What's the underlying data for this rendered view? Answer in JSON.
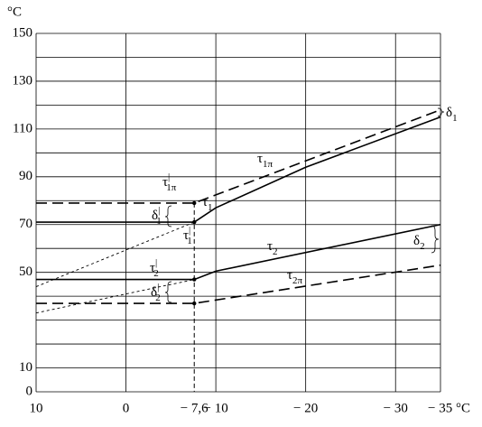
{
  "chart_data": {
    "type": "line",
    "y_unit": "°C",
    "xlim": [
      10,
      -35
    ],
    "ylim": [
      0,
      150
    ],
    "xticks": [
      10,
      0,
      {
        "value": -7.6,
        "label": "− 7,6"
      },
      {
        "value": -10,
        "label": "− 10"
      },
      {
        "value": -20,
        "label": "− 20"
      },
      {
        "value": -30,
        "label": "− 30"
      },
      {
        "value": -35,
        "label": "− 35 °C"
      }
    ],
    "xgrid": [
      10,
      0,
      -10,
      -20,
      -30,
      -35
    ],
    "yticks": [
      0,
      10,
      50,
      70,
      90,
      110,
      130,
      150
    ],
    "ygrid": [
      0,
      10,
      20,
      30,
      40,
      50,
      60,
      70,
      80,
      90,
      100,
      110,
      120,
      130,
      140,
      150
    ],
    "marker_x": -7.6,
    "series": [
      {
        "style": "dashed",
        "x": [
          10,
          -7.6,
          -35
        ],
        "values": [
          79,
          79,
          118
        ]
      },
      {
        "style": "solid",
        "x": [
          10,
          -7.6,
          -10,
          -20,
          -35
        ],
        "values": [
          71,
          71,
          77,
          94,
          115
        ]
      },
      {
        "style": "solid",
        "x": [
          10,
          -7.6,
          -10,
          -35
        ],
        "values": [
          47,
          47,
          50.5,
          70
        ]
      },
      {
        "style": "dashed",
        "x": [
          10,
          -7.6,
          -35
        ],
        "values": [
          37,
          37,
          53
        ]
      },
      {
        "style": "dotted",
        "x": [
          10,
          -7.6
        ],
        "values": [
          44,
          71
        ]
      },
      {
        "style": "dotted",
        "x": [
          10,
          -7.6
        ],
        "values": [
          33,
          47
        ]
      }
    ],
    "points": {
      "x": [
        -7.6,
        -7.6,
        -7.6,
        -7.6
      ],
      "values": [
        79,
        71,
        47,
        37
      ]
    },
    "annotations": [
      {
        "text": "τ",
        "sub": "1π",
        "sup": "|"
      },
      {
        "text": "τ",
        "sub": "1"
      },
      {
        "text": "τ",
        "sub": "1",
        "sup": "|"
      },
      {
        "text": "δ",
        "sub": "1",
        "sup": "|"
      },
      {
        "text": "τ",
        "sub": "1π"
      },
      {
        "text": "τ",
        "sub": "2"
      },
      {
        "text": "τ",
        "sub": "2",
        "sup": "|"
      },
      {
        "text": "δ",
        "sub": "2",
        "sup": "|"
      },
      {
        "text": "τ",
        "sub": "2π"
      },
      {
        "text": "δ",
        "sub": "1"
      },
      {
        "text": "δ",
        "sub": "2"
      }
    ]
  }
}
